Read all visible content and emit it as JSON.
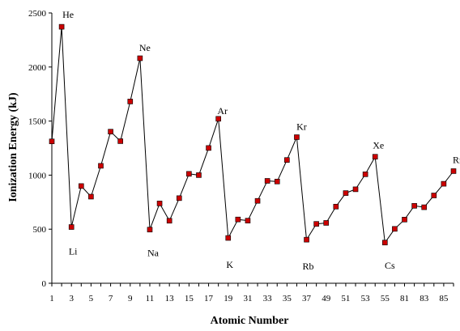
{
  "chart_data": {
    "type": "line",
    "xlabel": "Atomic Number",
    "ylabel": "Ionization Energy (kJ)",
    "ylim": [
      0,
      2500
    ],
    "yticks": [
      0,
      500,
      1000,
      1500,
      2000,
      2500
    ],
    "x_tick_labels": [
      "1",
      "3",
      "5",
      "7",
      "9",
      "11",
      "13",
      "15",
      "17",
      "19",
      "31",
      "33",
      "35",
      "37",
      "49",
      "51",
      "53",
      "55",
      "81",
      "83",
      "85"
    ],
    "x": [
      1,
      2,
      3,
      4,
      5,
      6,
      7,
      8,
      9,
      10,
      11,
      12,
      13,
      14,
      15,
      16,
      17,
      18,
      19,
      20,
      31,
      32,
      33,
      34,
      35,
      36,
      37,
      38,
      49,
      50,
      51,
      52,
      53,
      54,
      55,
      56,
      81,
      82,
      83,
      84,
      85,
      86
    ],
    "values": [
      1312,
      2372,
      520,
      899,
      801,
      1086,
      1402,
      1314,
      1681,
      2081,
      496,
      738,
      578,
      787,
      1012,
      1000,
      1251,
      1521,
      419,
      590,
      579,
      762,
      947,
      941,
      1140,
      1351,
      403,
      549,
      558,
      709,
      834,
      869,
      1008,
      1170,
      376,
      503,
      589,
      716,
      703,
      812,
      920,
      1037
    ],
    "grid": false,
    "legend": "none",
    "marker_color": "#cc0000",
    "line_color": "#000000",
    "annotations": [
      {
        "text": "He",
        "x": 2
      },
      {
        "text": "Ne",
        "x": 10
      },
      {
        "text": "Ar",
        "x": 18
      },
      {
        "text": "Kr",
        "x": 36
      },
      {
        "text": "Xe",
        "x": 54
      },
      {
        "text": "Rn",
        "x": 86
      },
      {
        "text": "Li",
        "x": 3
      },
      {
        "text": "Na",
        "x": 11
      },
      {
        "text": "K",
        "x": 19
      },
      {
        "text": "Rb",
        "x": 37
      },
      {
        "text": "Cs",
        "x": 55
      }
    ]
  }
}
